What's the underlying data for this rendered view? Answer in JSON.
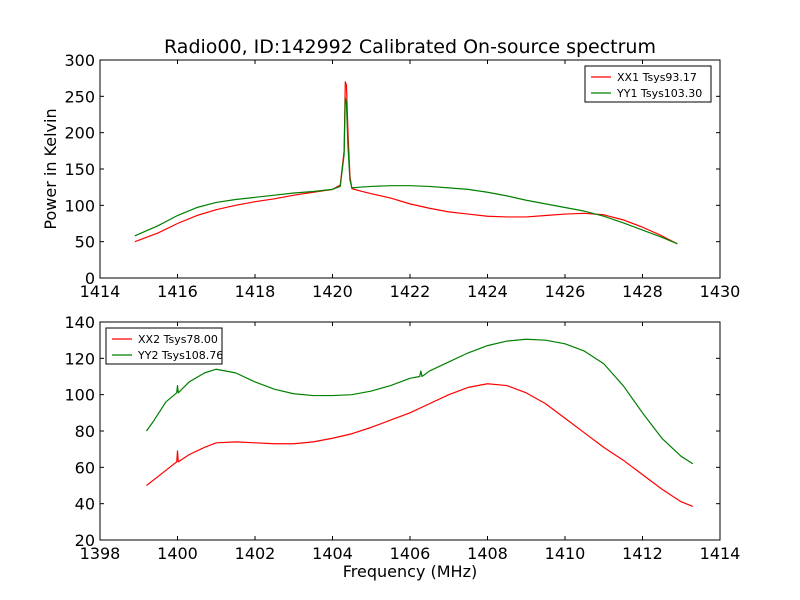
{
  "chart_data": [
    {
      "type": "line",
      "title": "Radio00, ID:142992 Calibrated On-source spectrum",
      "xlabel": "",
      "ylabel": "Power in Kelvin",
      "xlim": [
        1414,
        1430
      ],
      "ylim": [
        0,
        300
      ],
      "xticks": [
        1414,
        1416,
        1418,
        1420,
        1422,
        1424,
        1426,
        1428,
        1430
      ],
      "yticks": [
        0,
        50,
        100,
        150,
        200,
        250,
        300
      ],
      "legend": "top-right",
      "series": [
        {
          "name": "XX1 Tsys93.17",
          "color": "#ff0000",
          "x": [
            1414.9,
            1415.5,
            1416,
            1416.5,
            1417,
            1417.5,
            1418,
            1418.5,
            1419,
            1419.5,
            1420,
            1420.2,
            1420.3,
            1420.33,
            1420.36,
            1420.4,
            1420.45,
            1420.5,
            1420.7,
            1421,
            1421.5,
            1422,
            1422.5,
            1423,
            1423.5,
            1424,
            1424.5,
            1425,
            1425.5,
            1426,
            1426.5,
            1427,
            1427.5,
            1428,
            1428.5,
            1428.9
          ],
          "y": [
            50,
            62,
            75,
            86,
            94,
            100,
            105,
            109,
            114,
            118,
            122,
            128,
            175,
            270,
            265,
            200,
            140,
            123,
            120,
            116,
            110,
            102,
            96,
            91,
            88,
            85,
            84,
            84,
            86,
            88,
            89,
            87,
            80,
            70,
            58,
            47
          ]
        },
        {
          "name": "YY1 Tsys103.30",
          "color": "#008000",
          "x": [
            1414.9,
            1415.5,
            1416,
            1416.5,
            1417,
            1417.5,
            1418,
            1418.5,
            1419,
            1419.5,
            1420,
            1420.2,
            1420.3,
            1420.33,
            1420.36,
            1420.4,
            1420.45,
            1420.5,
            1420.7,
            1421,
            1421.5,
            1422,
            1422.5,
            1423,
            1423.5,
            1424,
            1424.5,
            1425,
            1425.5,
            1426,
            1426.5,
            1427,
            1427.5,
            1428,
            1428.5,
            1428.9
          ],
          "y": [
            58,
            72,
            86,
            97,
            104,
            108,
            111,
            114,
            117,
            119,
            122,
            126,
            170,
            248,
            240,
            180,
            135,
            124,
            125,
            126,
            127,
            127,
            126,
            124,
            122,
            118,
            113,
            107,
            102,
            97,
            92,
            85,
            76,
            66,
            56,
            47
          ]
        }
      ]
    },
    {
      "type": "line",
      "title": "",
      "xlabel": "Frequency (MHz)",
      "ylabel": "",
      "xlim": [
        1398,
        1414
      ],
      "ylim": [
        20,
        140
      ],
      "xticks": [
        1398,
        1400,
        1402,
        1404,
        1406,
        1408,
        1410,
        1412,
        1414
      ],
      "yticks": [
        20,
        40,
        60,
        80,
        100,
        120,
        140
      ],
      "legend": "top-left",
      "series": [
        {
          "name": "XX2 Tsys78.00",
          "color": "#ff0000",
          "x": [
            1399.2,
            1399.5,
            1399.8,
            1399.98,
            1400,
            1400.02,
            1400.3,
            1400.7,
            1401,
            1401.5,
            1402,
            1402.5,
            1403,
            1403.5,
            1404,
            1404.5,
            1405,
            1405.5,
            1406,
            1406.5,
            1407,
            1407.5,
            1408,
            1408.5,
            1409,
            1409.5,
            1410,
            1410.5,
            1411,
            1411.5,
            1412,
            1412.5,
            1413,
            1413.3
          ],
          "y": [
            50,
            55,
            60,
            63,
            69,
            63,
            67,
            71,
            73.5,
            74,
            73.5,
            73,
            73,
            74,
            76,
            78.5,
            82,
            86,
            90,
            95,
            100,
            104,
            106,
            105,
            101,
            95,
            87,
            79,
            71,
            64,
            56,
            48,
            41,
            38.5
          ]
        },
        {
          "name": "YY2 Tsys108.76",
          "color": "#008000",
          "x": [
            1399.2,
            1399.4,
            1399.7,
            1399.98,
            1400,
            1400.02,
            1400.3,
            1400.7,
            1401,
            1401.5,
            1402,
            1402.5,
            1403,
            1403.5,
            1404,
            1404.5,
            1405,
            1405.5,
            1406,
            1406.25,
            1406.28,
            1406.31,
            1406.5,
            1407,
            1407.5,
            1408,
            1408.5,
            1409,
            1409.5,
            1410,
            1410.5,
            1411,
            1411.5,
            1412,
            1412.5,
            1413,
            1413.3
          ],
          "y": [
            80,
            86,
            96,
            101,
            105,
            101,
            107,
            112,
            114,
            112,
            107,
            103,
            100.5,
            99.5,
            99.5,
            100,
            102,
            105,
            109,
            110,
            113,
            110,
            113,
            118,
            123,
            127,
            129.5,
            130.5,
            130,
            128,
            124,
            117,
            105,
            90,
            76,
            66,
            62
          ]
        }
      ]
    }
  ]
}
